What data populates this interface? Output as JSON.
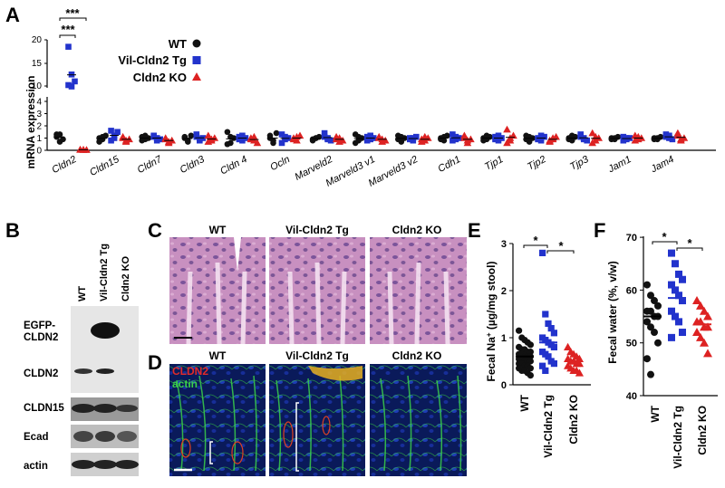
{
  "panelA": {
    "label": "A",
    "ylabel": "mRNA expression",
    "yticks_upper": [
      "20",
      "15",
      "10"
    ],
    "yticks_lower": [
      "4",
      "3",
      "2",
      "1",
      "0"
    ],
    "significance": [
      "***",
      "***"
    ],
    "legend": [
      "WT",
      "Vil-Cldn2 Tg",
      "Cldn2 KO"
    ],
    "colors": {
      "WT": "#111111",
      "Tg": "#2233cc",
      "KO": "#dd2222"
    }
  },
  "panelB": {
    "label": "B",
    "lanes": [
      "WT",
      "Vil-Cldn2 Tg",
      "Cldn2 KO"
    ],
    "rows": [
      "EGFP-\nCLDN2",
      "CLDN2",
      "CLDN15",
      "Ecad",
      "actin"
    ],
    "egfp_line1": "EGFP-",
    "egfp_line2": "CLDN2"
  },
  "panelC": {
    "label": "C",
    "titles": [
      "WT",
      "Vil-Cldn2 Tg",
      "Cldn2 KO"
    ]
  },
  "panelD": {
    "label": "D",
    "titles": [
      "WT",
      "Vil-Cldn2 Tg",
      "Cldn2 KO"
    ],
    "stain1": "CLDN2",
    "stain2": "actin"
  },
  "panelE": {
    "label": "E",
    "ylabel_main": "Fecal Na",
    "ylabel_sup": "+",
    "ylabel_tail": " (µg/mg stool)",
    "yticks": [
      "3",
      "2",
      "1",
      "0"
    ],
    "sig": [
      "*",
      "*"
    ],
    "categories": [
      "WT",
      "Vil-Cldn2 Tg",
      "Cldn2 KO"
    ]
  },
  "panelF": {
    "label": "F",
    "ylabel": "Fecal water (%, v/w)",
    "yticks": [
      "70",
      "60",
      "50",
      "40"
    ],
    "sig": [
      "*",
      "*"
    ],
    "categories": [
      "WT",
      "Vil-Cldn2 Tg",
      "Cldn2 KO"
    ]
  },
  "chart_data": [
    {
      "type": "scatter",
      "panel": "A",
      "ylabel": "mRNA expression",
      "categories": [
        "Cldn2",
        "Cldn15",
        "Cldn7",
        "Cldn3",
        "Cldn 4",
        "Ocln",
        "Marveld2",
        "Marveld3 v1",
        "Marveld3 v2",
        "Cdh1",
        "Tjp1",
        "Tjp2",
        "Tjp3",
        "Jam1",
        "Jam4"
      ],
      "series": [
        {
          "name": "WT",
          "values": [
            [
              1.3,
              0.7,
              0.9,
              1.1,
              1.3
            ],
            [
              1.0,
              0.9,
              1.2,
              0.7,
              1.1
            ],
            [
              1.1,
              0.9,
              1.0,
              0.8,
              1.2
            ],
            [
              1.0,
              0.8,
              1.2,
              1.1,
              0.7
            ],
            [
              1.5,
              0.6,
              1.0,
              0.5,
              1.1
            ],
            [
              1.2,
              0.8,
              1.4,
              1.0,
              0.6
            ],
            [
              0.9,
              1.0,
              1.1,
              0.8,
              1.0
            ],
            [
              1.3,
              0.8,
              1.0,
              0.6,
              1.1
            ],
            [
              1.2,
              0.7,
              1.0,
              0.9,
              1.1
            ],
            [
              1.0,
              0.8,
              1.2,
              0.9,
              1.1
            ],
            [
              1.0,
              0.9,
              1.1,
              0.8,
              1.2
            ],
            [
              1.2,
              0.7,
              1.0,
              0.9,
              1.1
            ],
            [
              1.0,
              0.8,
              1.1,
              0.9,
              1.2
            ],
            [
              1.0,
              0.9,
              1.1,
              0.9,
              1.0
            ],
            [
              1.0,
              0.9,
              1.1,
              0.9,
              1.0
            ]
          ]
        },
        {
          "name": "Vil-Cldn2 Tg",
          "values": [
            [
              18.5,
              12.5,
              11.0,
              10.2,
              9.9
            ],
            [
              1.6,
              1.2,
              1.5,
              0.8,
              1.0
            ],
            [
              1.1,
              1.0,
              0.9,
              1.2,
              0.8
            ],
            [
              1.3,
              0.9,
              1.0,
              1.1,
              0.8
            ],
            [
              1.1,
              0.8,
              1.0,
              0.9,
              1.2
            ],
            [
              1.3,
              0.9,
              1.0,
              0.6,
              1.1
            ],
            [
              1.4,
              1.0,
              0.8,
              1.1,
              0.9
            ],
            [
              1.1,
              0.9,
              1.0,
              0.8,
              1.2
            ],
            [
              1.0,
              0.8,
              1.1,
              0.9,
              1.0
            ],
            [
              1.3,
              0.9,
              1.0,
              0.8,
              1.1
            ],
            [
              1.1,
              0.8,
              1.0,
              0.9,
              1.2
            ],
            [
              1.0,
              0.8,
              1.1,
              0.9,
              1.2
            ],
            [
              1.3,
              1.0,
              0.8,
              1.1,
              0.9
            ],
            [
              1.1,
              0.9,
              1.0,
              0.8,
              1.0
            ],
            [
              1.3,
              1.0,
              0.9,
              1.1,
              1.2
            ]
          ]
        },
        {
          "name": "Cldn2 KO",
          "values": [
            [
              0.05,
              0.04,
              0.03,
              0.05,
              0.04
            ],
            [
              1.0,
              0.7,
              0.9,
              1.1,
              0.8
            ],
            [
              0.9,
              0.7,
              0.8,
              1.0,
              0.6
            ],
            [
              1.2,
              0.8,
              1.0,
              0.7,
              0.9
            ],
            [
              1.0,
              0.8,
              0.6,
              0.9,
              1.1
            ],
            [
              1.0,
              0.8,
              1.2,
              0.9,
              1.1
            ],
            [
              0.9,
              1.0,
              0.8,
              1.1,
              0.7
            ],
            [
              1.0,
              0.9,
              0.8,
              1.1,
              0.7
            ],
            [
              0.9,
              0.8,
              1.0,
              0.7,
              1.1
            ],
            [
              1.2,
              0.6,
              0.9,
              1.0,
              0.8
            ],
            [
              1.7,
              0.8,
              1.2,
              0.6,
              1.0
            ],
            [
              0.8,
              1.0,
              1.1,
              0.7,
              0.9
            ],
            [
              1.4,
              0.8,
              1.0,
              0.6,
              1.1
            ],
            [
              1.2,
              0.9,
              1.0,
              0.8,
              1.1
            ],
            [
              1.4,
              0.8,
              1.0,
              1.2,
              0.9
            ]
          ]
        }
      ]
    },
    {
      "type": "scatter",
      "panel": "E",
      "ylabel": "Fecal Na+ (µg/mg stool)",
      "categories": [
        "WT",
        "Vil-Cldn2 Tg",
        "Cldn2 KO"
      ],
      "ylim": [
        0,
        3
      ],
      "series": [
        {
          "name": "WT",
          "values": [
            1.15,
            1.0,
            0.95,
            0.9,
            0.85,
            0.8,
            0.75,
            0.75,
            0.7,
            0.7,
            0.65,
            0.65,
            0.6,
            0.6,
            0.6,
            0.55,
            0.55,
            0.5,
            0.5,
            0.5,
            0.45,
            0.45,
            0.4,
            0.4,
            0.35,
            0.35,
            0.3,
            0.3,
            0.25,
            0.2
          ],
          "mean": 0.6
        },
        {
          "name": "Vil-Cldn2 Tg",
          "values": [
            2.8,
            1.5,
            1.3,
            1.2,
            1.1,
            1.0,
            0.95,
            0.9,
            0.85,
            0.8,
            0.7,
            0.65,
            0.6,
            0.5,
            0.45,
            0.4,
            0.3
          ],
          "mean": 0.9
        },
        {
          "name": "Cldn2 KO",
          "values": [
            0.8,
            0.7,
            0.65,
            0.6,
            0.55,
            0.55,
            0.5,
            0.5,
            0.45,
            0.45,
            0.4,
            0.35,
            0.3,
            0.3,
            0.25
          ],
          "mean": 0.5
        }
      ]
    },
    {
      "type": "scatter",
      "panel": "F",
      "ylabel": "Fecal water (%, v/w)",
      "categories": [
        "WT",
        "Vil-Cldn2 Tg",
        "Cldn2 KO"
      ],
      "ylim": [
        40,
        70
      ],
      "series": [
        {
          "name": "WT",
          "values": [
            61,
            59,
            58,
            57,
            56,
            56,
            55,
            55,
            54,
            53,
            52,
            50,
            47,
            44
          ],
          "mean": 55
        },
        {
          "name": "Vil-Cldn2 Tg",
          "values": [
            67,
            65,
            63,
            62,
            61,
            60,
            59,
            58,
            56,
            55,
            54,
            52,
            51
          ],
          "mean": 58.5
        },
        {
          "name": "Cldn2 KO",
          "values": [
            58,
            57,
            56,
            55,
            54,
            54,
            53,
            53,
            52,
            51,
            50,
            48
          ],
          "mean": 53.5
        }
      ]
    }
  ]
}
